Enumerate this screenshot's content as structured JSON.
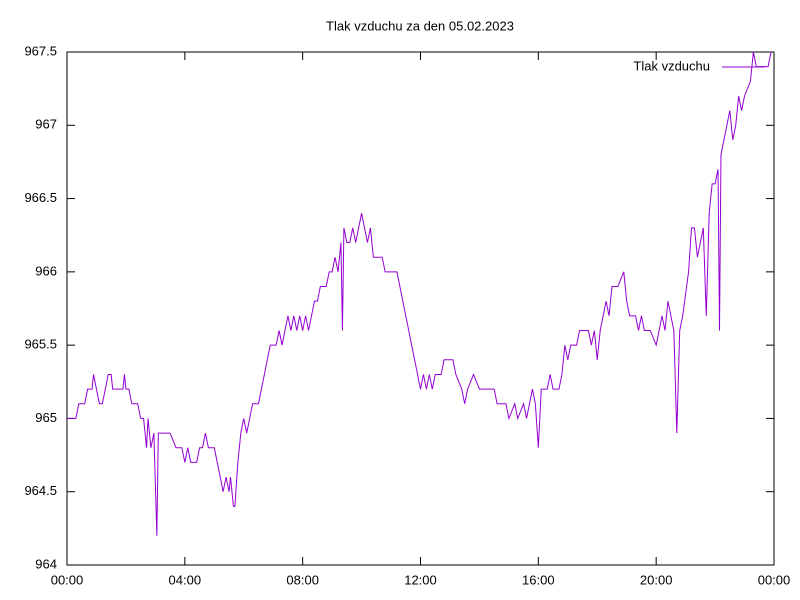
{
  "chart_data": {
    "type": "line",
    "title": "Tlak vzduchu za den 05.02.2023",
    "x": [
      0.0,
      0.3,
      0.4,
      0.6,
      0.7,
      0.85,
      0.9,
      1.0,
      1.1,
      1.2,
      1.3,
      1.4,
      1.5,
      1.55,
      1.7,
      1.9,
      1.95,
      2.0,
      2.1,
      2.2,
      2.4,
      2.5,
      2.6,
      2.7,
      2.75,
      2.85,
      2.95,
      3.05,
      3.1,
      3.2,
      3.5,
      3.7,
      3.9,
      4.0,
      4.1,
      4.2,
      4.4,
      4.5,
      4.6,
      4.7,
      4.8,
      5.0,
      5.1,
      5.3,
      5.4,
      5.5,
      5.55,
      5.65,
      5.7,
      5.8,
      5.9,
      6.0,
      6.1,
      6.2,
      6.3,
      6.5,
      6.6,
      6.7,
      6.8,
      6.9,
      7.1,
      7.2,
      7.3,
      7.4,
      7.5,
      7.6,
      7.7,
      7.8,
      7.9,
      8.0,
      8.1,
      8.2,
      8.3,
      8.4,
      8.5,
      8.6,
      8.8,
      8.9,
      9.0,
      9.1,
      9.2,
      9.3,
      9.35,
      9.4,
      9.5,
      9.6,
      9.7,
      9.8,
      9.9,
      10.0,
      10.1,
      10.2,
      10.3,
      10.4,
      10.7,
      10.8,
      11.2,
      11.3,
      11.5,
      11.7,
      11.9,
      12.0,
      12.1,
      12.2,
      12.3,
      12.4,
      12.5,
      12.7,
      12.8,
      13.1,
      13.2,
      13.4,
      13.5,
      13.6,
      13.8,
      14.0,
      14.5,
      14.6,
      14.9,
      15.0,
      15.2,
      15.3,
      15.5,
      15.6,
      15.7,
      15.8,
      15.9,
      16.0,
      16.1,
      16.3,
      16.4,
      16.5,
      16.7,
      16.8,
      16.9,
      17.0,
      17.1,
      17.3,
      17.4,
      17.7,
      17.8,
      17.9,
      18.0,
      18.1,
      18.2,
      18.3,
      18.4,
      18.5,
      18.7,
      18.9,
      19.0,
      19.1,
      19.3,
      19.4,
      19.5,
      19.6,
      19.8,
      20.0,
      20.1,
      20.2,
      20.3,
      20.4,
      20.5,
      20.6,
      20.7,
      20.8,
      20.9,
      21.1,
      21.2,
      21.3,
      21.4,
      21.5,
      21.6,
      21.7,
      21.8,
      21.9,
      22.0,
      22.1,
      22.15,
      22.2,
      22.3,
      22.4,
      22.5,
      22.6,
      22.7,
      22.8,
      22.9,
      23.0,
      23.2,
      23.3,
      23.4,
      23.6,
      23.8,
      23.9
    ],
    "series": [
      {
        "name": "Tlak vzduchu",
        "color": "#9400d3",
        "values": [
          965.0,
          965.0,
          965.1,
          965.1,
          965.2,
          965.2,
          965.3,
          965.2,
          965.1,
          965.1,
          965.2,
          965.3,
          965.3,
          965.2,
          965.2,
          965.2,
          965.3,
          965.2,
          965.2,
          965.1,
          965.1,
          965.0,
          965.0,
          964.8,
          965.0,
          964.8,
          964.9,
          964.2,
          964.9,
          964.9,
          964.9,
          964.8,
          964.8,
          964.7,
          964.8,
          964.7,
          964.7,
          964.8,
          964.8,
          964.9,
          964.8,
          964.8,
          964.7,
          964.5,
          964.6,
          964.5,
          964.6,
          964.4,
          964.4,
          964.7,
          964.9,
          965.0,
          964.9,
          965.0,
          965.1,
          965.1,
          965.2,
          965.3,
          965.4,
          965.5,
          965.5,
          965.6,
          965.5,
          965.6,
          965.7,
          965.6,
          965.7,
          965.6,
          965.7,
          965.6,
          965.7,
          965.6,
          965.7,
          965.8,
          965.8,
          965.9,
          965.9,
          966.0,
          966.0,
          966.1,
          966.0,
          966.2,
          965.6,
          966.3,
          966.2,
          966.2,
          966.3,
          966.2,
          966.3,
          966.4,
          966.3,
          966.2,
          966.3,
          966.1,
          966.1,
          966.0,
          966.0,
          965.9,
          965.7,
          965.5,
          965.3,
          965.2,
          965.3,
          965.2,
          965.3,
          965.2,
          965.3,
          965.3,
          965.4,
          965.4,
          965.3,
          965.2,
          965.1,
          965.2,
          965.3,
          965.2,
          965.2,
          965.1,
          965.1,
          965.0,
          965.1,
          965.0,
          965.1,
          965.0,
          965.1,
          965.2,
          965.1,
          964.8,
          965.2,
          965.2,
          965.3,
          965.2,
          965.2,
          965.3,
          965.5,
          965.4,
          965.5,
          965.5,
          965.6,
          965.6,
          965.5,
          965.6,
          965.4,
          965.6,
          965.7,
          965.8,
          965.7,
          965.9,
          965.9,
          966.0,
          965.8,
          965.7,
          965.7,
          965.6,
          965.7,
          965.6,
          965.6,
          965.5,
          965.6,
          965.7,
          965.6,
          965.8,
          965.7,
          965.6,
          964.9,
          965.6,
          965.7,
          966.0,
          966.3,
          966.3,
          966.1,
          966.2,
          966.3,
          965.7,
          966.4,
          966.6,
          966.6,
          966.7,
          965.6,
          966.8,
          966.9,
          967.0,
          967.1,
          966.9,
          967.0,
          967.2,
          967.1,
          967.2,
          967.3,
          967.5,
          967.4,
          967.4,
          967.4,
          967.5
        ]
      }
    ],
    "xlim": [
      0,
      24
    ],
    "xticks": [
      {
        "value": 0,
        "label": "00:00"
      },
      {
        "value": 4,
        "label": "04:00"
      },
      {
        "value": 8,
        "label": "08:00"
      },
      {
        "value": 12,
        "label": "12:00"
      },
      {
        "value": 16,
        "label": "16:00"
      },
      {
        "value": 20,
        "label": "20:00"
      },
      {
        "value": 24,
        "label": "00:00"
      }
    ],
    "ylim": [
      964,
      967.5
    ],
    "yticks": [
      964,
      964.5,
      965,
      965.5,
      966,
      966.5,
      967,
      967.5
    ],
    "grid": false,
    "legend": "upper right"
  }
}
